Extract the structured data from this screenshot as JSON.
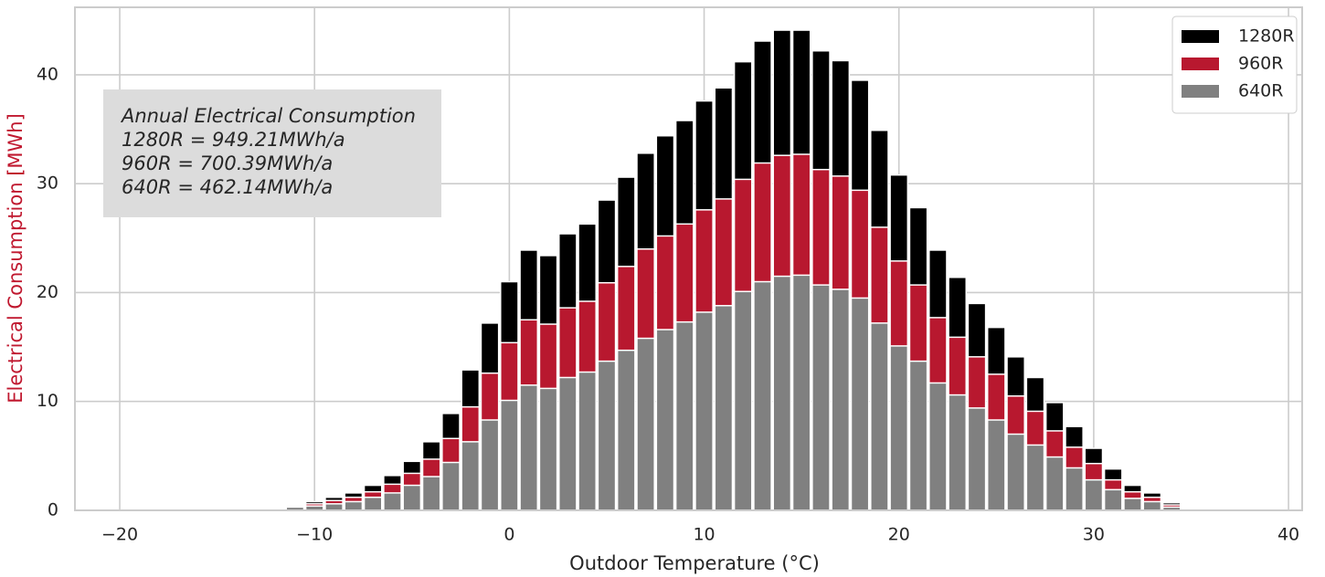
{
  "chart_data": {
    "type": "bar",
    "mode": "overlap",
    "xlabel": "Outdoor Temperature (°C)",
    "ylabel": "Electrical Consumption [MWh]",
    "ylabel_color": "#c0182f",
    "x": [
      -12,
      -11,
      -10,
      -9,
      -8,
      -7,
      -6,
      -5,
      -4,
      -3,
      -2,
      -1,
      0,
      1,
      2,
      3,
      4,
      5,
      6,
      7,
      8,
      9,
      10,
      11,
      12,
      13,
      14,
      15,
      16,
      17,
      18,
      19,
      20,
      21,
      22,
      23,
      24,
      25,
      26,
      27,
      28,
      29,
      30,
      31,
      32,
      33,
      34,
      35
    ],
    "series": [
      {
        "name": "1280R",
        "color": "#000000",
        "values": [
          0.2,
          0.5,
          0.8,
          1.2,
          1.6,
          2.3,
          3.2,
          4.5,
          6.3,
          8.9,
          12.9,
          17.2,
          21.0,
          23.9,
          23.4,
          25.4,
          26.3,
          28.5,
          30.6,
          32.8,
          34.4,
          35.8,
          37.6,
          38.8,
          41.2,
          43.1,
          44.1,
          44.1,
          42.2,
          41.3,
          39.5,
          34.9,
          30.8,
          27.8,
          23.9,
          21.4,
          19.0,
          16.8,
          14.1,
          12.2,
          9.9,
          7.7,
          5.7,
          3.8,
          2.3,
          1.6,
          0.7,
          0.1
        ]
      },
      {
        "name": "960R",
        "color": "#b8182f",
        "values": [
          0.1,
          0.4,
          0.6,
          0.9,
          1.2,
          1.7,
          2.4,
          3.4,
          4.7,
          6.6,
          9.5,
          12.6,
          15.4,
          17.5,
          17.1,
          18.6,
          19.2,
          20.9,
          22.4,
          24.0,
          25.2,
          26.3,
          27.6,
          28.6,
          30.4,
          31.9,
          32.6,
          32.7,
          31.3,
          30.7,
          29.4,
          26.0,
          22.9,
          20.7,
          17.7,
          15.9,
          14.1,
          12.5,
          10.5,
          9.1,
          7.3,
          5.8,
          4.3,
          2.8,
          1.7,
          1.2,
          0.5,
          0.1
        ]
      },
      {
        "name": "640R",
        "color": "#808080",
        "values": [
          0.1,
          0.3,
          0.4,
          0.6,
          0.8,
          1.2,
          1.6,
          2.3,
          3.1,
          4.4,
          6.3,
          8.3,
          10.1,
          11.5,
          11.2,
          12.2,
          12.7,
          13.7,
          14.7,
          15.8,
          16.6,
          17.3,
          18.2,
          18.8,
          20.1,
          21.0,
          21.5,
          21.6,
          20.7,
          20.3,
          19.5,
          17.2,
          15.1,
          13.7,
          11.7,
          10.6,
          9.4,
          8.3,
          7.0,
          6.0,
          4.9,
          3.9,
          2.8,
          1.9,
          1.1,
          0.8,
          0.3,
          0.1
        ]
      }
    ],
    "bar_width": 0.9,
    "xlim": [
      -22.3,
      40.7
    ],
    "ylim": [
      0,
      46.2
    ],
    "xticks": [
      {
        "value": -20,
        "label": "−20"
      },
      {
        "value": -10,
        "label": "−10"
      },
      0,
      10,
      20,
      30,
      40
    ],
    "yticks": [
      0,
      10,
      20,
      30,
      40
    ],
    "grid": true,
    "legend": "upper right",
    "annotation": [
      "Annual Electrical Consumption",
      "1280R = 949.21MWh/a",
      "960R = 700.39MWh/a",
      "640R = 462.14MWh/a"
    ]
  }
}
